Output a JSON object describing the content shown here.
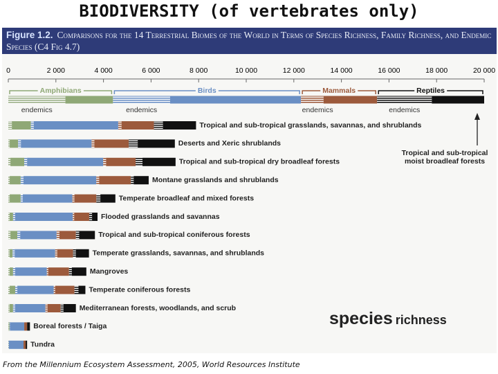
{
  "chart_data": {
    "type": "stacked-bar-horizontal",
    "title": "BIODIVERSITY (of vertebrates only)",
    "figure_label": "Figure 1.2.",
    "subtitle": "Comparisons for the 14 Terrestrial Biomes of the World in Terms of Species Richness, Family Richness, and Endemic Species (C4 Fig 4.7)",
    "panel_label": {
      "main": "species",
      "sub": "richness"
    },
    "source": "From the Millennium Ecosystem Assessment, 2005, World Resources Institute",
    "categories": [
      "Tropical and sub-tropical moist broadleaf forests",
      "Tropical and sub-tropical grasslands, savannas, and shrublands",
      "Deserts and Xeric shrublands",
      "Tropical and sub-tropical dry broadleaf forests",
      "Montane grasslands and shrublands",
      "Temperate broadleaf and mixed forests",
      "Flooded grasslands and savannas",
      "Tropical and sub-tropical coniferous forests",
      "Temperate grasslands, savannas, and shrublands",
      "Mangroves",
      "Temperate coniferous forests",
      "Mediterranean forests, woodlands, and scrub",
      "Boreal forests / Taiga",
      "Tundra"
    ],
    "series": [
      {
        "name": "endemics",
        "color": "#9aae86",
        "values": [
          2400,
          150,
          60,
          90,
          60,
          60,
          60,
          90,
          60,
          60,
          60,
          60,
          20,
          0
        ]
      },
      {
        "name": "Amphibians",
        "color": "#8fa876",
        "values": [
          2000,
          800,
          350,
          580,
          460,
          460,
          140,
          290,
          120,
          140,
          230,
          140,
          30,
          10
        ]
      },
      {
        "name": "endemics",
        "color": "#6a8fc4",
        "values": [
          2400,
          120,
          120,
          120,
          120,
          90,
          90,
          120,
          90,
          90,
          90,
          90,
          20,
          20
        ]
      },
      {
        "name": "Birds",
        "color": "#6a8fc4",
        "values": [
          5500,
          3550,
          2970,
          3200,
          3060,
          2080,
          2420,
          1530,
          1700,
          1330,
          1530,
          1270,
          600,
          610
        ]
      },
      {
        "name": "endemics",
        "color": "#9c5a3c",
        "values": [
          950,
          140,
          120,
          120,
          120,
          90,
          60,
          120,
          90,
          60,
          60,
          90,
          0,
          0
        ]
      },
      {
        "name": "Mammals",
        "color": "#9c5a3c",
        "values": [
          2250,
          1360,
          1440,
          1240,
          1330,
          920,
          630,
          690,
          660,
          870,
          810,
          550,
          120,
          90
        ]
      },
      {
        "name": "endemics",
        "color": "#111111",
        "values": [
          2300,
          380,
          380,
          290,
          120,
          170,
          120,
          140,
          120,
          120,
          170,
          120,
          0,
          0
        ]
      },
      {
        "name": "Reptiles",
        "color": "#111111",
        "values": [
          2200,
          1390,
          1560,
          1390,
          630,
          630,
          230,
          660,
          550,
          610,
          290,
          520,
          120,
          60
        ]
      }
    ],
    "xlim": [
      0,
      20000
    ],
    "xticks": [
      0,
      {
        "value": 2000,
        "label": "2 000"
      },
      {
        "value": 4000,
        "label": "4 000"
      },
      {
        "value": 6000,
        "label": "6 000"
      },
      {
        "value": 8000,
        "label": "8 000"
      },
      {
        "value": 10000,
        "label": "10 000"
      },
      {
        "value": 12000,
        "label": "12 000"
      },
      {
        "value": 14000,
        "label": "14 000"
      },
      {
        "value": 16000,
        "label": "16 000"
      },
      {
        "value": 18000,
        "label": "18 000"
      },
      {
        "value": 20000,
        "label": "20 000"
      }
    ]
  }
}
